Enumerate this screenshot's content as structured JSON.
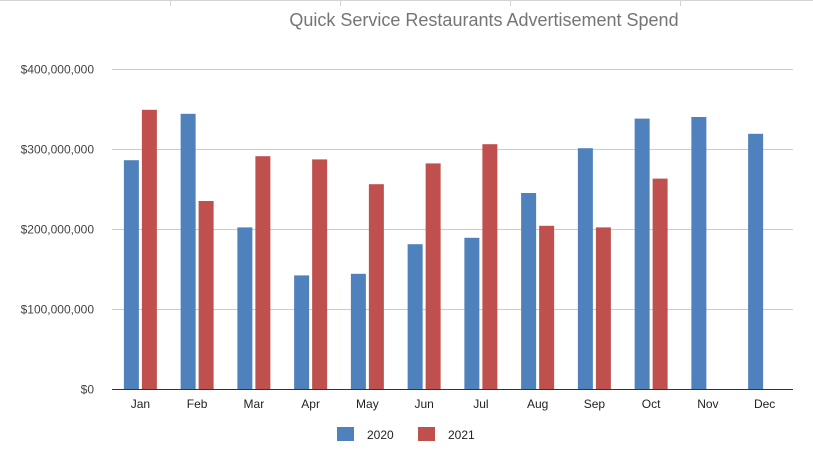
{
  "chart_data": {
    "type": "bar",
    "title": "Quick Service Restaurants Advertisement Spend",
    "xlabel": "",
    "ylabel": "",
    "categories": [
      "Jan",
      "Feb",
      "Mar",
      "Apr",
      "May",
      "Jun",
      "Jul",
      "Aug",
      "Sep",
      "Oct",
      "Nov",
      "Dec"
    ],
    "series": [
      {
        "name": "2020",
        "color": "#4f81bd",
        "values": [
          286000000,
          344000000,
          202000000,
          142000000,
          144000000,
          181000000,
          189000000,
          245000000,
          301000000,
          338000000,
          340000000,
          319000000
        ]
      },
      {
        "name": "2021",
        "color": "#c0504d",
        "values": [
          349000000,
          235000000,
          291000000,
          287000000,
          256000000,
          282000000,
          306000000,
          204000000,
          202000000,
          263000000,
          null,
          null
        ]
      }
    ],
    "ylim": [
      0,
      400000000
    ],
    "yticks": [
      0,
      100000000,
      200000000,
      300000000,
      400000000
    ],
    "ytick_labels": [
      "$0",
      "$100,000,000",
      "$200,000,000",
      "$300,000,000",
      "$400,000,000"
    ],
    "grid": true,
    "legend_position": "bottom"
  }
}
